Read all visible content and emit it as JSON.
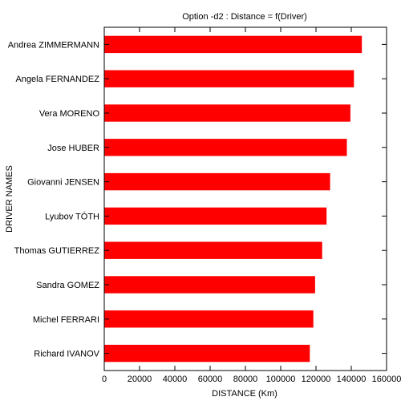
{
  "chart_data": {
    "type": "bar",
    "orientation": "horizontal",
    "title": "Option -d2 : Distance = f(Driver)",
    "xlabel": "DISTANCE (Km)",
    "ylabel": "DRIVER NAMES",
    "xlim": [
      0,
      160000
    ],
    "xticks": [
      0,
      20000,
      40000,
      60000,
      80000,
      100000,
      120000,
      140000,
      160000
    ],
    "grid": false,
    "bar_color": "#ff0000",
    "categories": [
      "Andrea ZIMMERMANN",
      "Angela FERNANDEZ",
      "Vera MORENO",
      "Jose HUBER",
      "Giovanni JENSEN",
      "Lyubov TÓTH",
      "Thomas GUTIERREZ",
      "Sandra GOMEZ",
      "Michel FERRARI",
      "Richard IVANOV"
    ],
    "values": [
      146000,
      141500,
      139500,
      137500,
      128000,
      126000,
      123500,
      119500,
      118500,
      116500
    ]
  }
}
